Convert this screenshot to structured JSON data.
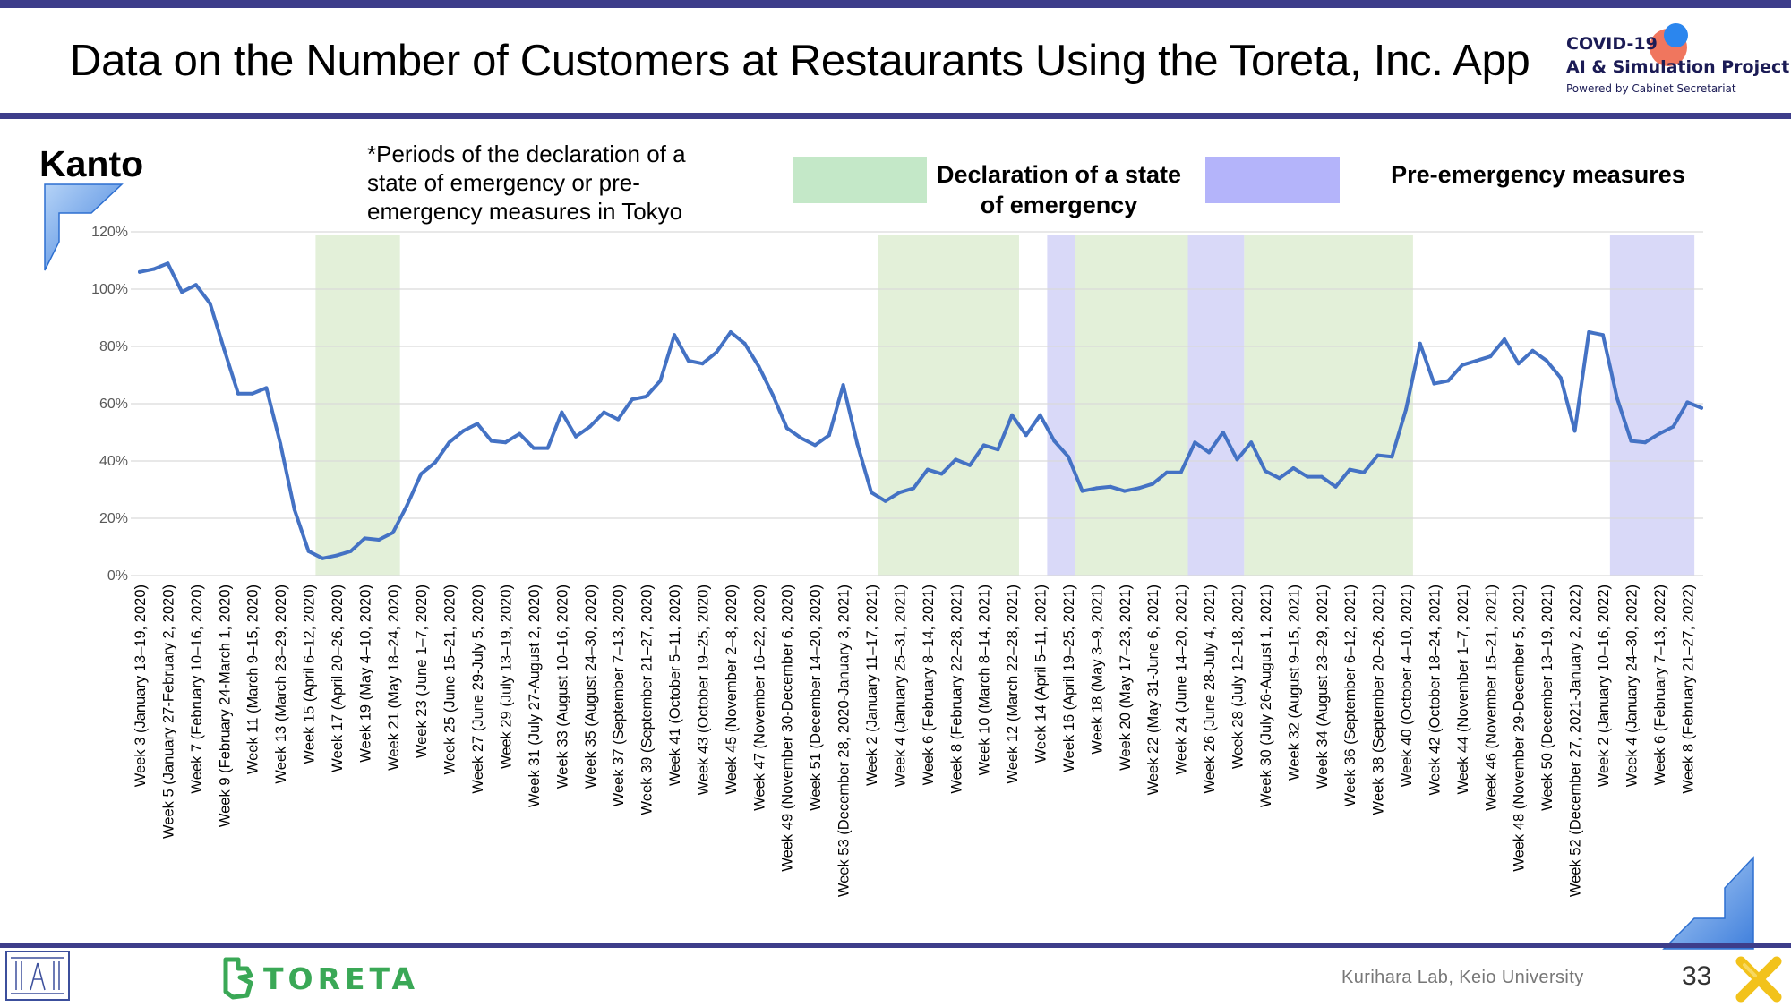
{
  "header": {
    "title": "Data on the Number of Customers at Restaurants Using the Toreta, Inc. App",
    "logo_line1": "COVID-19",
    "logo_line2": "AI & Simulation Project",
    "logo_line3": "Powered by Cabinet Secretariat"
  },
  "region": "Kanto",
  "note": "*Periods of the declaration of a state of emergency or pre-emergency measures in Tokyo",
  "legend": {
    "emergency_label": "Declaration of a state of emergency",
    "pre_emergency_label": "Pre-emergency measures",
    "emergency_color": "#e3f0d9",
    "pre_emergency_color": "#d9d9f8",
    "emergency_swatch_color": "#c4e8c8",
    "pre_emergency_swatch_color": "#b4b4fa"
  },
  "chart_data": {
    "type": "line",
    "title": "",
    "xlabel": "",
    "ylabel": "",
    "y_unit": "%",
    "ylim": [
      0,
      120
    ],
    "yticks": [
      0,
      20,
      40,
      60,
      80,
      100,
      120
    ],
    "ytick_labels": [
      "0%",
      "20%",
      "40%",
      "60%",
      "80%",
      "100%",
      "120%"
    ],
    "grid": true,
    "line_color": "#4472c4",
    "x_tick_labels": [
      "Week 3 (January 13–19, 2020)",
      "Week 5 (January 27-February 2, 2020)",
      "Week 7 (February 10–16, 2020)",
      "Week 9 (February 24-March 1, 2020)",
      "Week 11 (March 9–15, 2020)",
      "Week 13 (March 23–29, 2020)",
      "Week 15 (April 6–12, 2020)",
      "Week 17 (April 20–26, 2020)",
      "Week 19 (May 4–10, 2020)",
      "Week 21 (May 18–24, 2020)",
      "Week 23 (June 1–7, 2020)",
      "Week 25 (June 15–21, 2020)",
      "Week 27 (June 29-July 5, 2020)",
      "Week 29 (July 13–19, 2020)",
      "Week 31 (July 27-August 2, 2020)",
      "Week 33 (August 10–16, 2020)",
      "Week 35 (August 24–30, 2020)",
      "Week 37 (September 7–13, 2020)",
      "Week 39 (September 21–27, 2020)",
      "Week 41 (October 5–11, 2020)",
      "Week 43 (October 19–25, 2020)",
      "Week 45 (November 2–8, 2020)",
      "Week 47 (November 16–22, 2020)",
      "Week 49 (November 30-December 6, 2020)",
      "Week 51 (December 14–20, 2020)",
      "Week 53 (December 28, 2020-January 3, 2021)",
      "Week 2 (January 11–17, 2021)",
      "Week 4 (January 25–31, 2021)",
      "Week 6 (February 8–14, 2021)",
      "Week 8 (February 22–28, 2021)",
      "Week 10 (March 8–14, 2021)",
      "Week 12 (March 22–28, 2021)",
      "Week 14 (April 5–11, 2021)",
      "Week 16 (April 19–25, 2021)",
      "Week 18 (May 3–9, 2021)",
      "Week 20 (May 17–23, 2021)",
      "Week 22 (May 31-June 6, 2021)",
      "Week 24 (June 14–20, 2021)",
      "Week 26 (June 28-July 4, 2021)",
      "Week 28 (July 12–18, 2021)",
      "Week 30 (July 26-August 1, 2021)",
      "Week 32 (August 9–15, 2021)",
      "Week 34 (August 23–29, 2021)",
      "Week 36 (September 6–12, 2021)",
      "Week 38 (September 20–26, 2021)",
      "Week 40 (October 4–10, 2021)",
      "Week 42 (October 18–24, 2021)",
      "Week 44 (November 1–7, 2021)",
      "Week 46 (November 15–21, 2021)",
      "Week 48 (November 29-December 5, 2021)",
      "Week 50 (December 13–19, 2021)",
      "Week 52 (December 27, 2021-January 2, 2022)",
      "Week 2 (January 10–16, 2022)",
      "Week 4 (January 24–30, 2022)",
      "Week 6 (February 7–13, 2022)",
      "Week 8 (February 21–27, 2022)"
    ],
    "series": [
      {
        "values": [
          106,
          107,
          109,
          99,
          101.5,
          95,
          79,
          63.5,
          63.5,
          65.5,
          46,
          23,
          8.5,
          6,
          7,
          8.5,
          13,
          12.5,
          15,
          24.5,
          35.5,
          39.5,
          46.5,
          50.5,
          53,
          47,
          46.5,
          49.5,
          44.5,
          44.5,
          57,
          48.5,
          52,
          57,
          54.5,
          61.5,
          62.5,
          68,
          84,
          75,
          74,
          78,
          85,
          81,
          73,
          63,
          51.5,
          48,
          45.5,
          49,
          66.5,
          46,
          29,
          26,
          29,
          30.5,
          37,
          35.5,
          40.5,
          38.5,
          45.5,
          44,
          56,
          49,
          56,
          47,
          41.5,
          29.5,
          30.5,
          31,
          29.5,
          30.5,
          32,
          36,
          36,
          46.5,
          43,
          50,
          40.5,
          46.5,
          36.5,
          34,
          37.5,
          34.5,
          34.5,
          31,
          37,
          36,
          42,
          41.5,
          58,
          81,
          67,
          68,
          73.5,
          75,
          76.5,
          82.5,
          74,
          78.5,
          75,
          69,
          50.5,
          85,
          84,
          62,
          47,
          46.5,
          49.5,
          52,
          60.5,
          58.5
        ]
      }
    ],
    "periods": [
      {
        "type": "emergency",
        "from_label": "Week 15 (April 6–12, 2020)",
        "to_label": "Week 21 (May 18–24, 2020)"
      },
      {
        "type": "emergency",
        "from_label": "Week 2 (January 11–17, 2021)",
        "to_label": "Week 12 (March 22–28, 2021)"
      },
      {
        "type": "pre-emergency",
        "from_label": "Week 14 (April 5–11, 2021)",
        "to_label": "Week 16 (April 19–25, 2021)"
      },
      {
        "type": "emergency",
        "from_label": "Week 16 (April 19–25, 2021)",
        "to_label": "Week 24 (June 14–20, 2021)"
      },
      {
        "type": "pre-emergency",
        "from_label": "Week 24 (June 14–20, 2021)",
        "to_label": "Week 28 (July 12–18, 2021)"
      },
      {
        "type": "emergency",
        "from_label": "Week 28 (July 12–18, 2021)",
        "to_label": "Week 40 (October 4–10, 2021)"
      },
      {
        "type": "pre-emergency",
        "from_label": "Week 2 (January 10–16, 2022)",
        "to_label": "Week 8 (February 21–27, 2022)"
      }
    ]
  },
  "footer": {
    "lab": "Kurihara Lab, Keio University",
    "page_number": "33",
    "brand": "TORETA"
  }
}
